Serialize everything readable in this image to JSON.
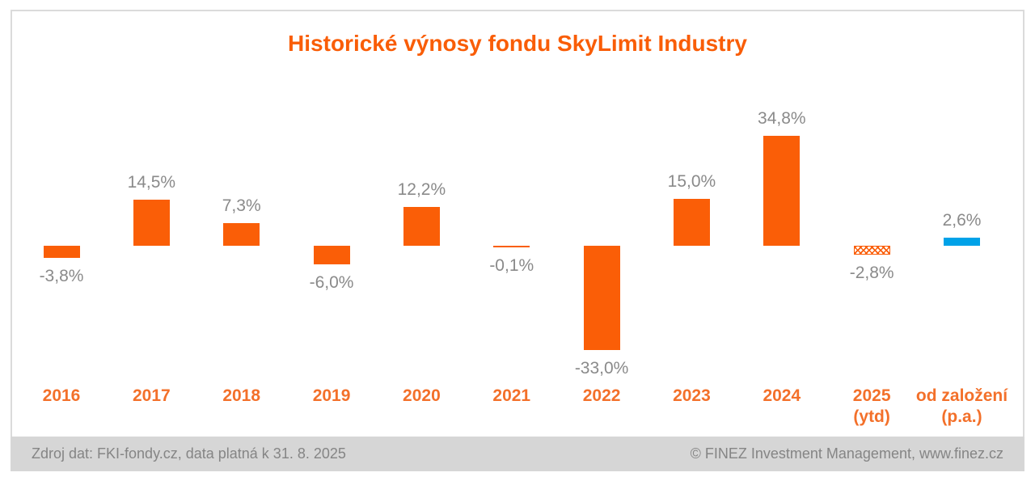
{
  "chart_data": {
    "type": "bar",
    "title": "Historické výnosy fondu SkyLimit Industry",
    "categories": [
      {
        "label": "2016",
        "sublabel": ""
      },
      {
        "label": "2017",
        "sublabel": ""
      },
      {
        "label": "2018",
        "sublabel": ""
      },
      {
        "label": "2019",
        "sublabel": ""
      },
      {
        "label": "2020",
        "sublabel": ""
      },
      {
        "label": "2021",
        "sublabel": ""
      },
      {
        "label": "2022",
        "sublabel": ""
      },
      {
        "label": "2023",
        "sublabel": ""
      },
      {
        "label": "2024",
        "sublabel": ""
      },
      {
        "label": "2025",
        "sublabel": "(ytd)"
      },
      {
        "label": "od založení",
        "sublabel": "(p.a.)"
      }
    ],
    "values": [
      -3.8,
      14.5,
      7.3,
      -6.0,
      12.2,
      -0.1,
      -33.0,
      15.0,
      34.8,
      -2.8,
      2.6
    ],
    "value_labels": [
      "-3,8%",
      "14,5%",
      "7,3%",
      "-6,0%",
      "12,2%",
      "-0,1%",
      "-33,0%",
      "15,0%",
      "34,8%",
      "-2,8%",
      "2,6%"
    ],
    "bar_styles": [
      "solid",
      "solid",
      "solid",
      "solid",
      "solid",
      "solid",
      "solid",
      "solid",
      "solid",
      "pattern",
      "since"
    ],
    "ylim": [
      -40,
      40
    ],
    "grid": false,
    "legend": "none",
    "xlabel": "",
    "ylabel": "",
    "colors": {
      "bar_orange": "#FA5E07",
      "since_inception_blue": "#00A2E8",
      "title_orange": "#F95D07",
      "year_label_orange": "#F3702A",
      "value_label_gray": "#8A8A8A",
      "footer_band_gray": "#D6D6D6",
      "footer_text_gray": "#858585",
      "frame_border_gray": "#DBDBDB"
    }
  },
  "footer": {
    "left": "Zdroj dat: FKI-fondy.cz, data platná k 31. 8. 2025",
    "right": "© FINEZ Investment Management, www.finez.cz"
  }
}
